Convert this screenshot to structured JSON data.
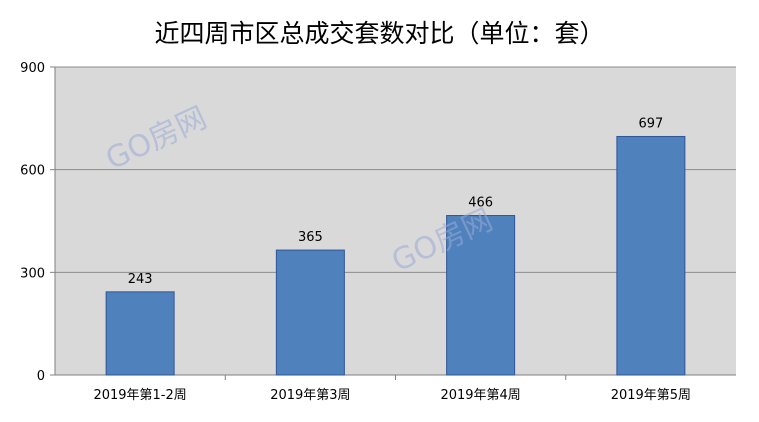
{
  "chart_data": {
    "type": "bar",
    "title": "近四周市区总成交套数对比（单位：套）",
    "categories": [
      "2019年第1-2周",
      "2019年第3周",
      "2019年第4周",
      "2019年第5周"
    ],
    "values": [
      243,
      365,
      466,
      697
    ],
    "ylim": [
      0,
      900
    ],
    "yticks": [
      0,
      300,
      600,
      900
    ],
    "grid": true,
    "legend": "none",
    "colors": {
      "bar": "#4f81bd",
      "bar_border": "#2f5597",
      "plot_bg": "#d9d9d9",
      "grid": "#8c8c8c"
    }
  },
  "watermarks": [
    "GO房网",
    "GO房网"
  ]
}
